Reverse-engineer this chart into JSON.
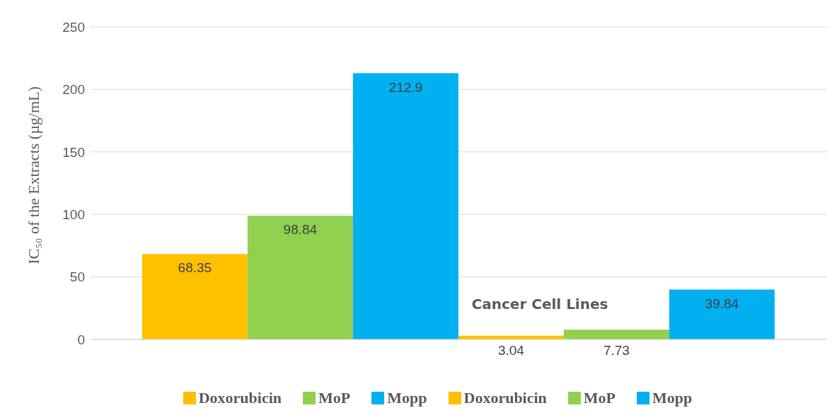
{
  "chart_data": {
    "type": "bar",
    "xlabel": "Cancer Cell Lines",
    "ylabel": "IC₅₀ of the Extracts (µg/mL)",
    "categories": [
      null
    ],
    "series": [
      {
        "name": "Doxorubicin",
        "color": "#ffc000",
        "values": [
          68.35
        ]
      },
      {
        "name": "MoP",
        "color": "#92d050",
        "values": [
          98.84
        ]
      },
      {
        "name": "Mopp",
        "color": "#00b0f0",
        "values": [
          212.9
        ]
      },
      {
        "name": "Doxorubicin",
        "color": "#ffc000",
        "values": [
          3.04
        ]
      },
      {
        "name": "MoP",
        "color": "#92d050",
        "values": [
          7.73
        ]
      },
      {
        "name": "Mopp",
        "color": "#00b0f0",
        "values": [
          39.84
        ]
      }
    ],
    "ylim": [
      0,
      250
    ],
    "yticks": [
      0,
      50,
      100,
      150,
      200,
      250
    ],
    "grid": "y",
    "legend": "bottom",
    "data_labels": true
  }
}
